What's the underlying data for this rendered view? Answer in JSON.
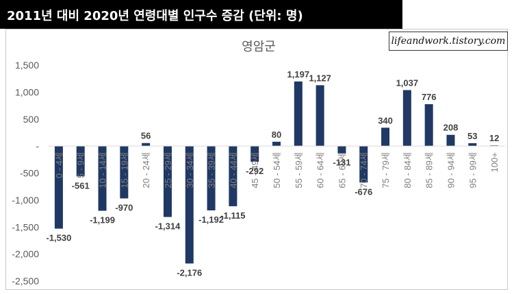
{
  "header": {
    "title": "2011년 대비 2020년 연령대별 인구수 증감 (단위: 명)"
  },
  "watermark": {
    "text": "lifeandwork.tistory.com"
  },
  "chart_data": {
    "type": "bar",
    "title": "영암군",
    "categories": [
      "0 - 4세",
      "5 - 9세",
      "10 - 14세",
      "15 - 19세",
      "20 - 24세",
      "25 - 29세",
      "30 - 34세",
      "35 - 39세",
      "40 - 44세",
      "45 - 49세",
      "50 - 54세",
      "55 - 59세",
      "60 - 64세",
      "65 - 69세",
      "70 - 74세",
      "75 - 79세",
      "80 - 84세",
      "85 - 89세",
      "90 - 94세",
      "95 - 99세",
      "100+"
    ],
    "values": [
      -1530,
      -561,
      -1199,
      -970,
      56,
      -1314,
      -2176,
      -1192,
      -1115,
      -292,
      80,
      1197,
      1127,
      -131,
      -676,
      340,
      1037,
      776,
      208,
      53,
      12
    ],
    "data_labels": [
      "-1,530",
      "-561",
      "-1,199",
      "-970",
      "56",
      "-1,314",
      "-2,176",
      "-1,192",
      "-1,115",
      "-292",
      "80",
      "1,197",
      "1,127",
      "-131",
      "-676",
      "340",
      "1,037",
      "776",
      "208",
      "53",
      "12"
    ],
    "ylim": [
      -2500,
      1500
    ],
    "yticks": [
      1500,
      1000,
      500,
      0,
      -500,
      -1000,
      -1500,
      -2000,
      -2500
    ],
    "ytick_labels": [
      "1,500",
      "1,000",
      "500",
      "-",
      "-500",
      "-1,000",
      "-1,500",
      "-2,000",
      "-2,500"
    ],
    "bar_color": "#203864",
    "grid": false,
    "legend": "none"
  }
}
